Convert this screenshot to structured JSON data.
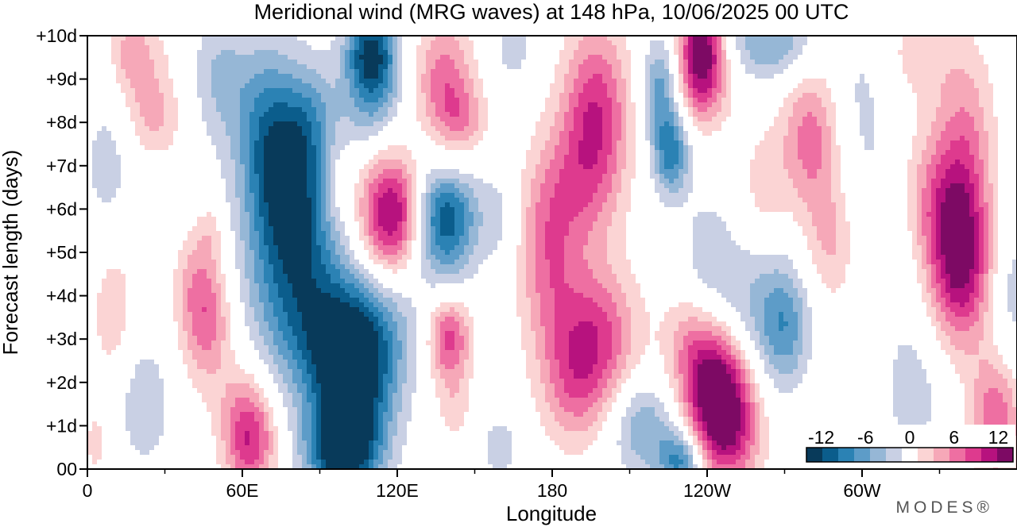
{
  "chart_data": {
    "type": "heatmap",
    "title": "Meridional wind (MRG waves) at  148 hPa,  10/06/2025  00 UTC",
    "xlabel": "Longitude",
    "ylabel": "Forecast length (days)",
    "x_ticks": [
      {
        "lon": 0,
        "label": "0"
      },
      {
        "lon": 60,
        "label": "60E"
      },
      {
        "lon": 120,
        "label": "120E"
      },
      {
        "lon": 180,
        "label": "180"
      },
      {
        "lon": 240,
        "label": "120W"
      },
      {
        "lon": 300,
        "label": "60W"
      }
    ],
    "x_minor_step": 30,
    "xlim": [
      0,
      360
    ],
    "y_ticks": [
      {
        "day": 0,
        "label": "00"
      },
      {
        "day": 1,
        "label": "+1d"
      },
      {
        "day": 2,
        "label": "+2d"
      },
      {
        "day": 3,
        "label": "+3d"
      },
      {
        "day": 4,
        "label": "+4d"
      },
      {
        "day": 5,
        "label": "+5d"
      },
      {
        "day": 6,
        "label": "+6d"
      },
      {
        "day": 7,
        "label": "+7d"
      },
      {
        "day": 8,
        "label": "+8d"
      },
      {
        "day": 9,
        "label": "+9d"
      },
      {
        "day": 10,
        "label": "+10d"
      }
    ],
    "ylim": [
      0,
      10
    ],
    "colorbar": {
      "placement": "bottom-right",
      "labels": [
        {
          "value": -12,
          "label": "-12"
        },
        {
          "value": -6,
          "label": "-6"
        },
        {
          "value": 0,
          "label": "0"
        },
        {
          "value": 6,
          "label": "6"
        },
        {
          "value": 12,
          "label": "12"
        }
      ],
      "levels": [
        -14,
        -12,
        -10,
        -8,
        -6,
        -4,
        -2,
        2,
        4,
        6,
        8,
        10,
        12,
        14
      ],
      "colors": [
        "#083a5a",
        "#0b5d8c",
        "#2b82b4",
        "#5d9cc8",
        "#96b7d6",
        "#c9d0e4",
        "#ffffff",
        "#fbd4d4",
        "#f6a8b8",
        "#ee6fa2",
        "#de3a8e",
        "#b7127e",
        "#7d0a64"
      ]
    },
    "features": [
      {
        "lon": 118,
        "day": 5.9,
        "value": 13,
        "slon": 9,
        "sday": 0.95
      },
      {
        "lon": 138,
        "day": 5.8,
        "value": -12,
        "slon": 9,
        "sday": 1.0
      },
      {
        "lon": 80,
        "day": 5.0,
        "value": -11,
        "slon": 13,
        "sday": 1.8
      },
      {
        "lon": 76,
        "day": 7.0,
        "value": -8,
        "slon": 10,
        "sday": 1.2
      },
      {
        "lon": 68,
        "day": 8.5,
        "value": -5,
        "slon": 12,
        "sday": 1.2
      },
      {
        "lon": 102,
        "day": 1.6,
        "value": -13,
        "slon": 11,
        "sday": 1.3
      },
      {
        "lon": 103,
        "day": 3.1,
        "value": -9,
        "slon": 15,
        "sday": 1.0
      },
      {
        "lon": 98,
        "day": 0.4,
        "value": -10,
        "slon": 9,
        "sday": 0.6
      },
      {
        "lon": 110,
        "day": 9.7,
        "value": -11,
        "slon": 7,
        "sday": 0.7
      },
      {
        "lon": 110,
        "day": 8.6,
        "value": -6,
        "slon": 8,
        "sday": 0.8
      },
      {
        "lon": 140,
        "day": 3.0,
        "value": 9,
        "slon": 6,
        "sday": 0.7
      },
      {
        "lon": 138,
        "day": 9.0,
        "value": 7,
        "slon": 8,
        "sday": 1.0
      },
      {
        "lon": 145,
        "day": 8.0,
        "value": 5,
        "slon": 7,
        "sday": 0.6
      },
      {
        "lon": 140,
        "day": 6.9,
        "value": 2.5,
        "slon": 6,
        "sday": 0.4
      },
      {
        "lon": 197,
        "day": 8.3,
        "value": 9,
        "slon": 9,
        "sday": 1.4
      },
      {
        "lon": 190,
        "day": 6.5,
        "value": 5,
        "slon": 11,
        "sday": 1.2
      },
      {
        "lon": 178,
        "day": 5.0,
        "value": 6,
        "slon": 8,
        "sday": 1.5
      },
      {
        "lon": 196,
        "day": 3.0,
        "value": 9,
        "slon": 12,
        "sday": 1.2
      },
      {
        "lon": 188,
        "day": 1.8,
        "value": 4,
        "slon": 9,
        "sday": 1.0
      },
      {
        "lon": 238,
        "day": 9.8,
        "value": 13,
        "slon": 6,
        "sday": 0.8
      },
      {
        "lon": 238,
        "day": 8.7,
        "value": 5,
        "slon": 8,
        "sday": 0.7
      },
      {
        "lon": 243,
        "day": 2.0,
        "value": 13,
        "slon": 9,
        "sday": 1.0
      },
      {
        "lon": 248,
        "day": 0.8,
        "value": 9,
        "slon": 9,
        "sday": 0.9
      },
      {
        "lon": 232,
        "day": 3.0,
        "value": 3,
        "slon": 7,
        "sday": 0.8
      },
      {
        "lon": 280,
        "day": 7.6,
        "value": 7,
        "slon": 8,
        "sday": 1.2
      },
      {
        "lon": 288,
        "day": 5.2,
        "value": 4,
        "slon": 7,
        "sday": 1.0
      },
      {
        "lon": 270,
        "day": 3.3,
        "value": -7,
        "slon": 7,
        "sday": 1.0
      },
      {
        "lon": 255,
        "day": 3.7,
        "value": -4,
        "slon": 10,
        "sday": 1.1
      },
      {
        "lon": 240,
        "day": 5.0,
        "value": -3,
        "slon": 7,
        "sday": 1.0
      },
      {
        "lon": 226,
        "day": 7.3,
        "value": -9,
        "slon": 5,
        "sday": 0.7
      },
      {
        "lon": 222,
        "day": 8.8,
        "value": -7,
        "slon": 5,
        "sday": 0.8
      },
      {
        "lon": 230,
        "day": 0.2,
        "value": -9,
        "slon": 6,
        "sday": 0.5
      },
      {
        "lon": 215,
        "day": 1.0,
        "value": -6,
        "slon": 9,
        "sday": 0.8
      },
      {
        "lon": 265,
        "day": 9.8,
        "value": -6,
        "slon": 12,
        "sday": 0.6
      },
      {
        "lon": 338,
        "day": 4.7,
        "value": 12,
        "slon": 8,
        "sday": 1.3
      },
      {
        "lon": 330,
        "day": 6.2,
        "value": 6,
        "slon": 11,
        "sday": 1.2
      },
      {
        "lon": 340,
        "day": 7.8,
        "value": 5,
        "slon": 8,
        "sday": 1.5
      },
      {
        "lon": 322,
        "day": 9.6,
        "value": 3,
        "slon": 10,
        "sday": 0.8
      },
      {
        "lon": 352,
        "day": 1.2,
        "value": 8,
        "slon": 7,
        "sday": 1.0
      },
      {
        "lon": 320,
        "day": 1.8,
        "value": -3,
        "slon": 9,
        "sday": 1.3
      },
      {
        "lon": 310,
        "day": 5.5,
        "value": -2.5,
        "slon": 8,
        "sday": 1.3
      },
      {
        "lon": 358,
        "day": 4.0,
        "value": -3,
        "slon": 5,
        "sday": 1.5
      },
      {
        "lon": 63,
        "day": 0.6,
        "value": 9,
        "slon": 7,
        "sday": 0.8
      },
      {
        "lon": 60,
        "day": 1.6,
        "value": 3,
        "slon": 8,
        "sday": 0.8
      },
      {
        "lon": 46,
        "day": 3.4,
        "value": 7,
        "slon": 7,
        "sday": 1.0
      },
      {
        "lon": 42,
        "day": 4.5,
        "value": 3,
        "slon": 6,
        "sday": 0.8
      },
      {
        "lon": 10,
        "day": 3.7,
        "value": 3.5,
        "slon": 6,
        "sday": 1.2
      },
      {
        "lon": 22,
        "day": 9.0,
        "value": 4,
        "slon": 8,
        "sday": 1.0
      },
      {
        "lon": 28,
        "day": 8.0,
        "value": 2.5,
        "slon": 7,
        "sday": 0.6
      },
      {
        "lon": 16,
        "day": 9.7,
        "value": 3,
        "slon": 5,
        "sday": 0.6
      },
      {
        "lon": 48,
        "day": 5.5,
        "value": 2.5,
        "slon": 4,
        "sday": 0.5
      },
      {
        "lon": 22,
        "day": 1.5,
        "value": -4,
        "slon": 7,
        "sday": 1.0
      },
      {
        "lon": 3,
        "day": 0.6,
        "value": 2.5,
        "slon": 4,
        "sday": 0.7
      },
      {
        "lon": 8,
        "day": 7.0,
        "value": -3,
        "slon": 7,
        "sday": 1.3
      },
      {
        "lon": 50,
        "day": 9.2,
        "value": -3,
        "slon": 7,
        "sday": 1.0
      },
      {
        "lon": 88,
        "day": 8.2,
        "value": -3,
        "slon": 6,
        "sday": 0.8
      },
      {
        "lon": 96,
        "day": 6.5,
        "value": 2.5,
        "slon": 5,
        "sday": 0.7
      },
      {
        "lon": 165,
        "day": 9.7,
        "value": -3,
        "slon": 6,
        "sday": 0.6
      },
      {
        "lon": 160,
        "day": 0.5,
        "value": -3,
        "slon": 6,
        "sday": 0.6
      },
      {
        "lon": 142,
        "day": 1.4,
        "value": 3,
        "slon": 5,
        "sday": 0.6
      },
      {
        "lon": 160,
        "day": 5.8,
        "value": -2.5,
        "slon": 5,
        "sday": 0.8
      },
      {
        "lon": 262,
        "day": 6.6,
        "value": 3,
        "slon": 6,
        "sday": 0.9
      },
      {
        "lon": 300,
        "day": 8.5,
        "value": -2.5,
        "slon": 8,
        "sday": 1.5
      }
    ]
  },
  "watermark": "MODES®"
}
